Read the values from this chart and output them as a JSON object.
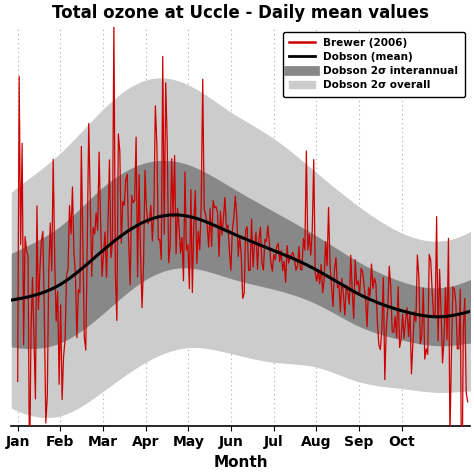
{
  "title": "Total ozone at Uccle - Daily mean values",
  "xlabel": "Month",
  "x_tick_labels": [
    "Jan",
    "Feb",
    "Mar",
    "Apr",
    "May",
    "Jun",
    "Jul",
    "Aug",
    "Sep",
    "Oct"
  ],
  "background_color": "#ffffff",
  "grid_color": "#aaaaaa",
  "dobson_mean": [
    280,
    295,
    330,
    360,
    365,
    348,
    330,
    310,
    285,
    268,
    262,
    272
  ],
  "dobson_2sigma_interannual_upper": [
    330,
    355,
    395,
    420,
    418,
    395,
    370,
    345,
    318,
    298,
    292,
    308
  ],
  "dobson_2sigma_interannual_lower": [
    230,
    235,
    265,
    300,
    312,
    301,
    290,
    275,
    252,
    238,
    232,
    236
  ],
  "dobson_2sigma_overall_upper": [
    395,
    430,
    475,
    505,
    500,
    472,
    445,
    410,
    375,
    348,
    340,
    360
  ],
  "dobson_2sigma_overall_lower": [
    165,
    160,
    185,
    215,
    230,
    224,
    215,
    210,
    195,
    188,
    184,
    184
  ],
  "brewer_color": "#cc0000",
  "dobson_mean_color": "#000000",
  "interannual_color": "#888888",
  "overall_color": "#cccccc",
  "ylim_bottom": 150,
  "ylim_top": 560,
  "xlim_left": -0.15,
  "xlim_right": 10.6
}
